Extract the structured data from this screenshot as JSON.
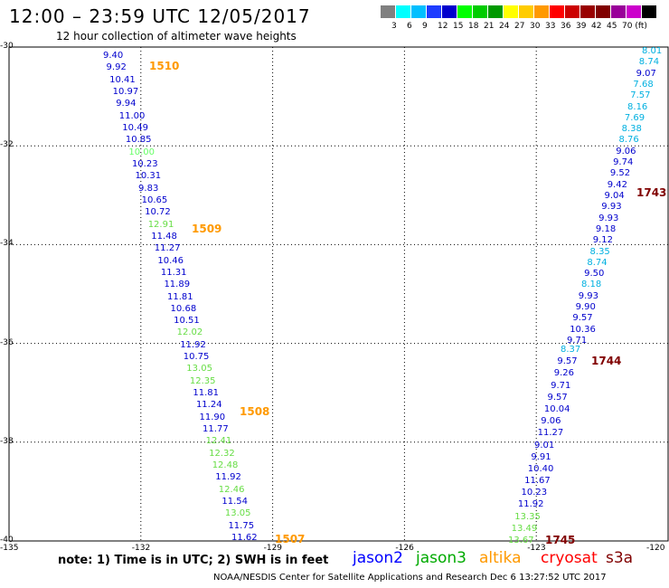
{
  "title": "12:00 – 23:59 UTC 12/05/2017",
  "subtitle": "12 hour collection of altimeter wave heights",
  "legend": {
    "colors": [
      "#808080",
      "#00ffff",
      "#00bfff",
      "#1e3cff",
      "#0000cd",
      "#00ff00",
      "#00cc00",
      "#009900",
      "#ffff00",
      "#ffcc00",
      "#ff9900",
      "#ff0000",
      "#cc0000",
      "#990000",
      "#800000",
      "#990099",
      "#cc00cc",
      "#000000"
    ],
    "labels": [
      "3",
      "6",
      "9",
      "12",
      "15",
      "18",
      "21",
      "24",
      "27",
      "30",
      "33",
      "36",
      "39",
      "42",
      "45",
      "70 (ft)"
    ]
  },
  "map": {
    "lon_range": [
      -135,
      -120
    ],
    "lat_range": [
      -40,
      -30
    ],
    "x_ticks": [
      "-135",
      "-132",
      "-129",
      "-126",
      "-123",
      "-120"
    ],
    "y_ticks": [
      "-30",
      "-32",
      "-34",
      "-36",
      "-38",
      "-40"
    ]
  },
  "tracks": [
    {
      "name": "jason2-west",
      "labels": [
        {
          "v": "9.40",
          "c": "#0000cd"
        },
        {
          "v": "9.92",
          "c": "#0000cd"
        },
        {
          "v": "10.41",
          "c": "#0000cd"
        },
        {
          "v": "10.97",
          "c": "#0000cd"
        },
        {
          "v": "9.94",
          "c": "#0000cd"
        },
        {
          "v": "11.00",
          "c": "#0000cd"
        },
        {
          "v": "10.49",
          "c": "#0000cd"
        },
        {
          "v": "10.85",
          "c": "#0000cd"
        },
        {
          "v": "10.00",
          "c": "#66ff66"
        },
        {
          "v": "10.23",
          "c": "#0000cd"
        },
        {
          "v": "10.31",
          "c": "#0000cd"
        },
        {
          "v": "9.83",
          "c": "#0000cd"
        },
        {
          "v": "10.65",
          "c": "#0000cd"
        },
        {
          "v": "10.72",
          "c": "#0000cd"
        },
        {
          "v": "12.91",
          "c": "#66dd44"
        },
        {
          "v": "11.48",
          "c": "#0000cd"
        },
        {
          "v": "11.27",
          "c": "#0000cd"
        },
        {
          "v": "10.46",
          "c": "#0000cd"
        },
        {
          "v": "11.31",
          "c": "#0000cd"
        },
        {
          "v": "11.89",
          "c": "#0000cd"
        },
        {
          "v": "11.81",
          "c": "#0000cd"
        },
        {
          "v": "10.68",
          "c": "#0000cd"
        },
        {
          "v": "10.51",
          "c": "#0000cd"
        },
        {
          "v": "12.02",
          "c": "#66dd44"
        },
        {
          "v": "11.92",
          "c": "#0000cd"
        },
        {
          "v": "10.75",
          "c": "#0000cd"
        },
        {
          "v": "13.05",
          "c": "#66dd44"
        },
        {
          "v": "12.35",
          "c": "#66dd44"
        },
        {
          "v": "11.81",
          "c": "#0000cd"
        },
        {
          "v": "11.24",
          "c": "#0000cd"
        },
        {
          "v": "11.90",
          "c": "#0000cd"
        },
        {
          "v": "11.77",
          "c": "#0000cd"
        },
        {
          "v": "12.41",
          "c": "#66dd44"
        },
        {
          "v": "12.32",
          "c": "#66dd44"
        },
        {
          "v": "12.48",
          "c": "#66dd44"
        },
        {
          "v": "11.92",
          "c": "#0000cd"
        },
        {
          "v": "12.46",
          "c": "#66dd44"
        },
        {
          "v": "11.54",
          "c": "#0000cd"
        },
        {
          "v": "13.05",
          "c": "#66dd44"
        },
        {
          "v": "11.75",
          "c": "#0000cd"
        },
        {
          "v": "11.62",
          "c": "#0000cd"
        }
      ]
    },
    {
      "name": "s3a-east-upper",
      "labels": [
        {
          "v": "8.01",
          "c": "#00b0e0"
        },
        {
          "v": "8.74",
          "c": "#00b0e0"
        },
        {
          "v": "9.07",
          "c": "#0000cd"
        },
        {
          "v": "7.68",
          "c": "#00b0e0"
        },
        {
          "v": "7.57",
          "c": "#00b0e0"
        },
        {
          "v": "8.16",
          "c": "#00b0e0"
        },
        {
          "v": "7.69",
          "c": "#00b0e0"
        },
        {
          "v": "8.38",
          "c": "#00b0e0"
        },
        {
          "v": "8.76",
          "c": "#00b0e0"
        },
        {
          "v": "9.06",
          "c": "#0000cd"
        },
        {
          "v": "9.74",
          "c": "#0000cd"
        },
        {
          "v": "9.52",
          "c": "#0000cd"
        },
        {
          "v": "9.42",
          "c": "#0000cd"
        },
        {
          "v": "9.04",
          "c": "#0000cd"
        },
        {
          "v": "9.93",
          "c": "#0000cd"
        },
        {
          "v": "9.93",
          "c": "#0000cd"
        },
        {
          "v": "9.18",
          "c": "#0000cd"
        },
        {
          "v": "9.12",
          "c": "#0000cd"
        },
        {
          "v": "8.35",
          "c": "#00b0e0"
        },
        {
          "v": "8.74",
          "c": "#00b0e0"
        },
        {
          "v": "9.50",
          "c": "#0000cd"
        },
        {
          "v": "8.18",
          "c": "#00b0e0"
        },
        {
          "v": "9.93",
          "c": "#0000cd"
        },
        {
          "v": "9.90",
          "c": "#0000cd"
        },
        {
          "v": "9.57",
          "c": "#0000cd"
        },
        {
          "v": "10.36",
          "c": "#0000cd"
        },
        {
          "v": "9.71",
          "c": "#0000cd"
        }
      ]
    },
    {
      "name": "s3a-east-lower",
      "labels": [
        {
          "v": "8.37",
          "c": "#00b0e0"
        },
        {
          "v": "9.57",
          "c": "#0000cd"
        },
        {
          "v": "9.26",
          "c": "#0000cd"
        },
        {
          "v": "9.71",
          "c": "#0000cd"
        },
        {
          "v": "9.57",
          "c": "#0000cd"
        },
        {
          "v": "10.04",
          "c": "#0000cd"
        },
        {
          "v": "9.06",
          "c": "#0000cd"
        },
        {
          "v": "11.27",
          "c": "#0000cd"
        },
        {
          "v": "9.01",
          "c": "#0000cd"
        },
        {
          "v": "9.91",
          "c": "#0000cd"
        },
        {
          "v": "10.40",
          "c": "#0000cd"
        },
        {
          "v": "11.67",
          "c": "#0000cd"
        },
        {
          "v": "10.23",
          "c": "#0000cd"
        },
        {
          "v": "11.92",
          "c": "#0000cd"
        },
        {
          "v": "13.35",
          "c": "#66dd44"
        },
        {
          "v": "13.49",
          "c": "#66dd44"
        },
        {
          "v": "13.67",
          "c": "#66dd44"
        }
      ]
    }
  ],
  "pass_labels": [
    {
      "v": "1510",
      "c": "#ff9900"
    },
    {
      "v": "1509",
      "c": "#ff9900"
    },
    {
      "v": "1508",
      "c": "#ff9900"
    },
    {
      "v": "1507",
      "c": "#ff9900"
    },
    {
      "v": "1743",
      "c": "#800000"
    },
    {
      "v": "1744",
      "c": "#800000"
    },
    {
      "v": "1745",
      "c": "#800000"
    }
  ],
  "note": "note:  1) Time is in UTC;  2) SWH is in feet",
  "satellites": [
    {
      "name": "jason2",
      "color": "#0000ff"
    },
    {
      "name": "jason3",
      "color": "#00aa00"
    },
    {
      "name": "altika",
      "color": "#ff9900"
    },
    {
      "name": "cryosat",
      "color": "#ff0000"
    },
    {
      "name": "s3a",
      "color": "#800000"
    }
  ],
  "credit": "NOAA/NESDIS Center for Satellite Applications and Research    Dec  6 13:27:52 UTC 2017"
}
